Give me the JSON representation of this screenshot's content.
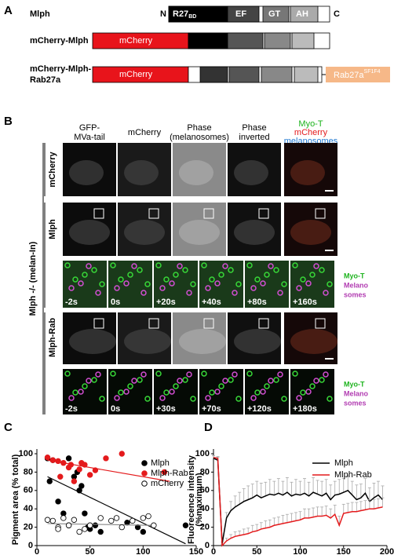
{
  "panel_a": {
    "label": "A",
    "constructs": [
      {
        "name": [
          "Mlph"
        ],
        "n_term": "N",
        "c_term": "C",
        "domains": [
          "R27",
          "BD",
          "EF",
          "GT",
          "AH"
        ]
      },
      {
        "name": [
          "mCherry-Mlph"
        ],
        "tag": "mCherry"
      },
      {
        "name": [
          "mCherry-Mlph-",
          "Rab27a"
        ],
        "tag": "mCherry",
        "fusion": [
          "Rab27a",
          "SF1F4"
        ]
      }
    ]
  },
  "panel_b": {
    "label": "B",
    "columns": [
      [
        "GFP-",
        "MVa-tail"
      ],
      [
        "mCherry"
      ],
      [
        "Phase",
        "(melanosomes)"
      ],
      [
        "Phase",
        "inverted"
      ]
    ],
    "merge_header": [
      "Myo-T",
      "mCherry",
      "melanosomes"
    ],
    "group_label": "Mlph -/- (melan-In)",
    "rows": [
      "mCherry",
      "Mlph",
      "Mlph-Rab"
    ],
    "timelapse": [
      [
        "-2s",
        "0s",
        "+20s",
        "+40s",
        "+80s",
        "+160s"
      ],
      [
        "-2s",
        "0s",
        "+30s",
        "+70s",
        "+120s",
        "+180s"
      ]
    ],
    "timelapse_legend": [
      "Myo-T",
      "Melano",
      "somes"
    ]
  },
  "chart_data": [
    {
      "type": "scatter",
      "panel": "C",
      "ylabel": "Pigment area (% total)",
      "xlim": [
        0,
        150
      ],
      "ylim": [
        0,
        100
      ],
      "xticks": [
        0,
        50,
        100,
        150
      ],
      "yticks": [
        0,
        20,
        40,
        60,
        80,
        100
      ],
      "series": [
        {
          "name": "Mlph",
          "color": "#000000",
          "open": false,
          "x": [
            10,
            15,
            20,
            25,
            30,
            35,
            38,
            40,
            42,
            45,
            48,
            50,
            55,
            60,
            85,
            95,
            100,
            140,
            30,
            12
          ],
          "values": [
            95,
            93,
            48,
            35,
            22,
            75,
            80,
            60,
            65,
            35,
            20,
            18,
            22,
            15,
            25,
            20,
            15,
            22,
            95,
            70
          ],
          "trend": {
            "x": [
              10,
              140
            ],
            "y": [
              75,
              2
            ]
          },
          "trend_color": "#000000"
        },
        {
          "name": "Mlph-Rab",
          "color": "#e41a1c",
          "open": false,
          "x": [
            10,
            15,
            20,
            25,
            30,
            32,
            35,
            40,
            42,
            45,
            50,
            55,
            65,
            80,
            120,
            22
          ],
          "values": [
            96,
            93,
            92,
            90,
            85,
            88,
            70,
            83,
            90,
            88,
            77,
            82,
            95,
            100,
            80,
            75
          ],
          "trend": {
            "x": [
              10,
              125
            ],
            "y": [
              93,
              70
            ]
          },
          "trend_color": "#e41a1c"
        },
        {
          "name": "mCherry",
          "color": "#000000",
          "open": true,
          "x": [
            10,
            15,
            20,
            25,
            30,
            35,
            40,
            45,
            50,
            60,
            70,
            75,
            80,
            90,
            100,
            105,
            110,
            20
          ],
          "values": [
            28,
            27,
            20,
            30,
            22,
            28,
            15,
            18,
            22,
            30,
            27,
            30,
            20,
            27,
            30,
            32,
            22,
            18
          ],
          "trend": {
            "x": [
              10,
              110
            ],
            "y": [
              24,
              22
            ]
          },
          "trend_color": "#888888"
        }
      ]
    },
    {
      "type": "line",
      "panel": "D",
      "ylabel": [
        "Fluorecence intensity",
        "(%maximum)"
      ],
      "xlim": [
        0,
        200
      ],
      "ylim": [
        0,
        100
      ],
      "xticks": [
        0,
        50,
        100,
        150,
        200
      ],
      "yticks": [
        0,
        20,
        40,
        60,
        80,
        100
      ],
      "x": [
        0,
        5,
        10,
        15,
        20,
        25,
        30,
        35,
        40,
        45,
        50,
        55,
        60,
        65,
        70,
        75,
        80,
        85,
        90,
        95,
        100,
        105,
        110,
        115,
        120,
        125,
        130,
        135,
        140,
        145,
        150,
        155,
        160,
        165,
        170,
        175,
        180,
        185,
        190,
        195
      ],
      "error_color": "#aaaaaa",
      "series": [
        {
          "name": "Mlph",
          "color": "#000000",
          "values": [
            95,
            93,
            2,
            30,
            38,
            42,
            45,
            48,
            50,
            52,
            55,
            52,
            54,
            56,
            55,
            57,
            55,
            58,
            54,
            56,
            55,
            57,
            54,
            58,
            56,
            54,
            57,
            50,
            55,
            56,
            58,
            60,
            55,
            50,
            52,
            57,
            48,
            52,
            55,
            50
          ],
          "errors": [
            3,
            3,
            2,
            6,
            10,
            12,
            13,
            14,
            15,
            15,
            15,
            16,
            15,
            16,
            15,
            16,
            15,
            16,
            15,
            16,
            15,
            16,
            15,
            16,
            15,
            16,
            15,
            16,
            15,
            16,
            15,
            16,
            15,
            16,
            15,
            16,
            15,
            16,
            15,
            15
          ]
        },
        {
          "name": "Mlph-Rab",
          "color": "#e41a1c",
          "values": [
            96,
            95,
            0,
            5,
            8,
            10,
            11,
            12,
            13,
            15,
            16,
            18,
            19,
            20,
            22,
            23,
            24,
            25,
            26,
            27,
            28,
            30,
            30,
            31,
            32,
            32,
            33,
            30,
            34,
            22,
            35,
            36,
            37,
            37,
            38,
            39,
            40,
            40,
            41,
            42
          ],
          "errors": [
            2,
            2,
            1,
            3,
            4,
            5,
            5,
            6,
            6,
            7,
            7,
            7,
            8,
            8,
            8,
            8,
            9,
            9,
            9,
            9,
            9,
            10,
            10,
            10,
            10,
            10,
            10,
            10,
            10,
            10,
            10,
            10,
            10,
            10,
            10,
            10,
            10,
            10,
            10,
            10
          ]
        }
      ]
    }
  ]
}
